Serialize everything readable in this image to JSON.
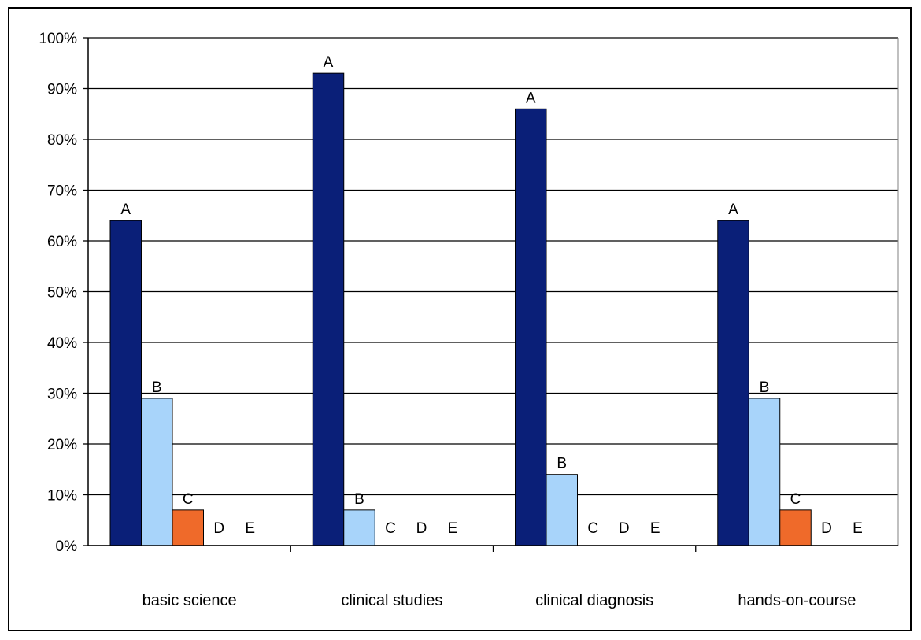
{
  "chart_data": {
    "type": "bar",
    "categories": [
      "basic science",
      "clinical studies",
      "clinical diagnosis",
      "hands-on-course"
    ],
    "series": [
      {
        "label": "A",
        "color": "#0a1f78",
        "values": [
          64,
          93,
          86,
          64
        ]
      },
      {
        "label": "B",
        "color": "#a8d4fa",
        "values": [
          29,
          7,
          14,
          29
        ]
      },
      {
        "label": "C",
        "color": "#ef6a2a",
        "values": [
          7,
          0,
          0,
          7
        ]
      },
      {
        "label": "D",
        "color": "#a0a0ff",
        "values": [
          0,
          0,
          0,
          0
        ]
      },
      {
        "label": "E",
        "color": "#ffffcc",
        "values": [
          0,
          0,
          0,
          0
        ]
      }
    ],
    "ylim": [
      0,
      100
    ],
    "yticks": [
      "0%",
      "10%",
      "20%",
      "30%",
      "40%",
      "50%",
      "60%",
      "70%",
      "80%",
      "90%",
      "100%"
    ],
    "grid": true,
    "title": "",
    "xlabel": "",
    "ylabel": ""
  }
}
